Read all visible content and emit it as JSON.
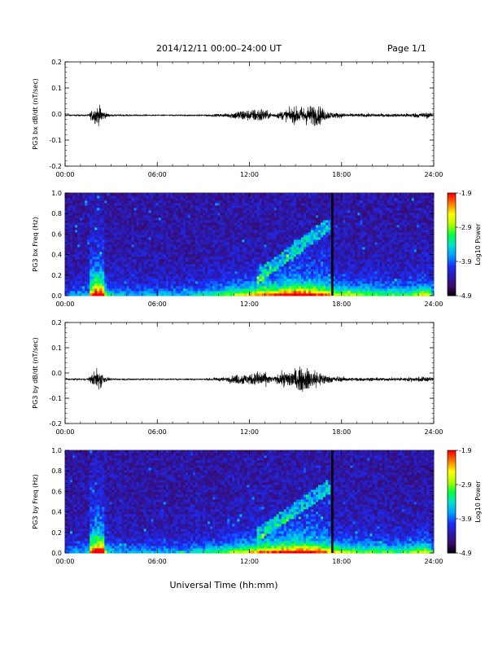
{
  "header": {
    "title": "2014/12/11  00:00–24:00 UT",
    "page": "Page 1/1"
  },
  "colors": {
    "line": "#000000",
    "colorbar": [
      "#000000",
      "#3a0a6a",
      "#2a1ab0",
      "#1a30ff",
      "#00a0ff",
      "#00e0d0",
      "#00ff40",
      "#b0ff00",
      "#ffff00",
      "#ff8000",
      "#ff0000"
    ]
  },
  "chart_data": [
    {
      "type": "line",
      "ylabel": "PG3 bx dB/dt (nT/sec)",
      "ylim": [
        -0.2,
        0.2
      ],
      "yticks": [
        "0.2",
        "0.1",
        "0.0",
        "-0.1",
        "-0.2"
      ],
      "xticks": [
        "00:00",
        "06:00",
        "12:00",
        "18:00",
        "24:00"
      ],
      "xlim_hours": [
        0,
        24
      ],
      "baseline": -0.005,
      "envelope": {
        "hours": [
          0,
          1.5,
          1.9,
          2.3,
          2.6,
          3,
          6,
          9,
          10.5,
          11.5,
          12,
          12.8,
          13.5,
          14,
          14.8,
          15.5,
          16.2,
          16.6,
          17,
          17.5,
          18.5,
          20,
          21,
          22,
          23.6,
          24
        ],
        "amplitude": [
          0.004,
          0.006,
          0.055,
          0.06,
          0.02,
          0.006,
          0.004,
          0.005,
          0.012,
          0.04,
          0.035,
          0.05,
          0.01,
          0.025,
          0.05,
          0.06,
          0.07,
          0.06,
          0.03,
          0.02,
          0.012,
          0.012,
          0.01,
          0.012,
          0.02,
          0.006
        ]
      }
    },
    {
      "type": "heatmap",
      "ylabel": "PG3 bx Freq (Hz)",
      "ylim": [
        0,
        1
      ],
      "yticks": [
        "1.0",
        "0.8",
        "0.6",
        "0.4",
        "0.2",
        "0.0"
      ],
      "xticks": [
        "00:00",
        "06:00",
        "12:00",
        "18:00",
        "24:00"
      ],
      "colorbar": {
        "label": "Log10 Power",
        "ticks": [
          "-1.9",
          "-2.9",
          "-3.9",
          "-4.9"
        ],
        "range": [
          -4.9,
          -1.9
        ]
      },
      "data_gap_hour": 17.4
    },
    {
      "type": "line",
      "ylabel": "PG3 by dB/dt (nT/sec)",
      "ylim": [
        -0.2,
        0.2
      ],
      "yticks": [
        "0.2",
        "0.1",
        "0.0",
        "-0.1",
        "-0.2"
      ],
      "xticks": [
        "00:00",
        "06:00",
        "12:00",
        "18:00",
        "24:00"
      ],
      "xlim_hours": [
        0,
        24
      ],
      "baseline": -0.025,
      "envelope": {
        "hours": [
          0,
          1.5,
          1.9,
          2.3,
          2.6,
          3,
          6,
          9,
          10.5,
          11.5,
          12,
          12.8,
          13.5,
          14,
          14.8,
          15.5,
          16.2,
          16.6,
          17,
          17.5,
          18.5,
          20,
          21,
          22,
          23.6,
          24
        ],
        "amplitude": [
          0.004,
          0.006,
          0.06,
          0.07,
          0.02,
          0.006,
          0.004,
          0.005,
          0.015,
          0.04,
          0.035,
          0.06,
          0.015,
          0.04,
          0.07,
          0.08,
          0.07,
          0.05,
          0.03,
          0.02,
          0.012,
          0.012,
          0.01,
          0.012,
          0.02,
          0.006
        ]
      }
    },
    {
      "type": "heatmap",
      "ylabel": "PG3 by Freq (Hz)",
      "ylim": [
        0,
        1
      ],
      "yticks": [
        "1.0",
        "0.8",
        "0.6",
        "0.4",
        "0.2",
        "0.0"
      ],
      "xticks": [
        "00:00",
        "06:00",
        "12:00",
        "18:00",
        "24:00"
      ],
      "xlabel": "Universal Time (hh:mm)",
      "colorbar": {
        "label": "Log10 Power",
        "ticks": [
          "-1.9",
          "-2.9",
          "-3.9",
          "-4.9"
        ],
        "range": [
          -4.9,
          -1.9
        ]
      },
      "data_gap_hour": 17.4
    }
  ]
}
